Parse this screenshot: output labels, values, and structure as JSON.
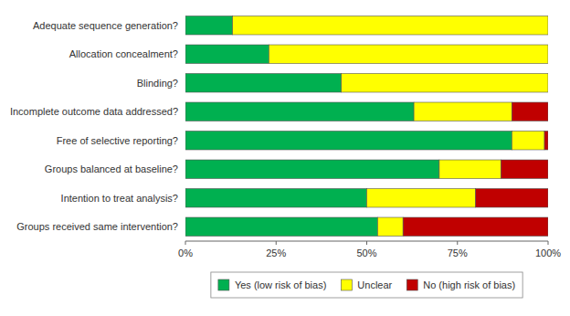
{
  "chart_data": {
    "type": "bar",
    "orientation": "horizontal",
    "stacked": true,
    "categories": [
      "Adequate sequence generation?",
      "Allocation concealment?",
      "Blinding?",
      "Incomplete outcome data addressed?",
      "Free of selective reporting?",
      "Groups balanced at baseline?",
      "Intention to treat analysis?",
      "Groups received same intervention?"
    ],
    "series": [
      {
        "name": "Yes (low risk of bias)",
        "color": "#00b050",
        "values": [
          13,
          23,
          43,
          63,
          90,
          70,
          50,
          53
        ]
      },
      {
        "name": "Unclear",
        "color": "#ffff00",
        "values": [
          87,
          77,
          57,
          27,
          9,
          17,
          30,
          7
        ]
      },
      {
        "name": "No (high risk of bias)",
        "color": "#c00000",
        "values": [
          0,
          0,
          0,
          10,
          1,
          13,
          20,
          40
        ]
      }
    ],
    "xlim": [
      0,
      100
    ],
    "xticks": [
      {
        "value": 0,
        "label": "0%"
      },
      {
        "value": 25,
        "label": "25%"
      },
      {
        "value": 50,
        "label": "50%"
      },
      {
        "value": 75,
        "label": "75%"
      },
      {
        "value": 100,
        "label": "100%"
      }
    ],
    "grid": false,
    "legend": "bottom"
  }
}
